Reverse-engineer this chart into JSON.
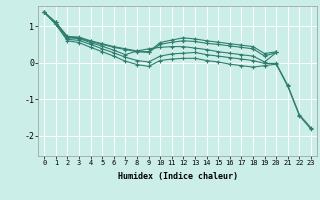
{
  "xlabel": "Humidex (Indice chaleur)",
  "background_color": "#cceee8",
  "grid_color": "#ffffff",
  "line_color": "#2e7d6e",
  "xlim": [
    -0.5,
    23.5
  ],
  "ylim": [
    -2.55,
    1.55
  ],
  "yticks": [
    -2,
    -1,
    0,
    1
  ],
  "xticks": [
    0,
    1,
    2,
    3,
    4,
    5,
    6,
    7,
    8,
    9,
    10,
    11,
    12,
    13,
    14,
    15,
    16,
    17,
    18,
    19,
    20,
    21,
    22,
    23
  ],
  "lines": [
    {
      "x": [
        0,
        1,
        2,
        3,
        4,
        5,
        6,
        7,
        8,
        9,
        10,
        11,
        12,
        13,
        14,
        15,
        16,
        17,
        18,
        19,
        20,
        21,
        22,
        23
      ],
      "y": [
        1.38,
        1.1,
        0.72,
        0.7,
        0.6,
        0.52,
        0.44,
        0.38,
        0.32,
        0.3,
        0.55,
        0.62,
        0.68,
        0.65,
        0.6,
        0.56,
        0.52,
        0.48,
        0.44,
        0.25,
        0.3,
        null,
        null,
        null
      ]
    },
    {
      "x": [
        0,
        1,
        2,
        3,
        4,
        5,
        6,
        7,
        8,
        9,
        10,
        11,
        12,
        13,
        14,
        15,
        16,
        17,
        18,
        19,
        20,
        21,
        22,
        23
      ],
      "y": [
        1.38,
        1.1,
        0.7,
        0.68,
        0.58,
        0.5,
        0.42,
        0.36,
        0.3,
        0.28,
        0.5,
        0.56,
        0.6,
        0.58,
        0.53,
        0.5,
        0.46,
        0.42,
        0.38,
        0.18,
        0.28,
        null,
        null,
        null
      ]
    },
    {
      "x": [
        0,
        1,
        2,
        3,
        4,
        5,
        6,
        7,
        8,
        9,
        10,
        11,
        12,
        13,
        14,
        15,
        16,
        17,
        18,
        19,
        20
      ],
      "y": [
        1.38,
        1.1,
        0.68,
        0.66,
        0.55,
        0.45,
        0.34,
        0.22,
        0.32,
        0.38,
        0.42,
        0.44,
        0.44,
        0.4,
        0.36,
        0.3,
        0.26,
        0.22,
        0.18,
        0.02,
        0.28
      ]
    },
    {
      "x": [
        0,
        1,
        2,
        3,
        4,
        5,
        6,
        7,
        8,
        9,
        10,
        11,
        12,
        13,
        14,
        15,
        16,
        17,
        18,
        19,
        20,
        21,
        22,
        23
      ],
      "y": [
        1.38,
        1.05,
        0.64,
        0.61,
        0.5,
        0.38,
        0.27,
        0.15,
        0.06,
        0.02,
        0.18,
        0.24,
        0.26,
        0.28,
        0.22,
        0.18,
        0.14,
        0.1,
        0.06,
        -0.02,
        -0.02,
        -0.62,
        -1.42,
        -1.78
      ]
    },
    {
      "x": [
        0,
        1,
        2,
        3,
        4,
        5,
        6,
        7,
        8,
        9,
        10,
        11,
        12,
        13,
        14,
        15,
        16,
        17,
        18,
        19,
        20,
        21,
        22,
        23
      ],
      "y": [
        1.38,
        1.05,
        0.6,
        0.55,
        0.42,
        0.3,
        0.18,
        0.04,
        -0.05,
        -0.1,
        0.06,
        0.1,
        0.12,
        0.12,
        0.06,
        0.02,
        -0.04,
        -0.08,
        -0.12,
        -0.08,
        -0.04,
        -0.65,
        -1.45,
        -1.82
      ]
    }
  ]
}
